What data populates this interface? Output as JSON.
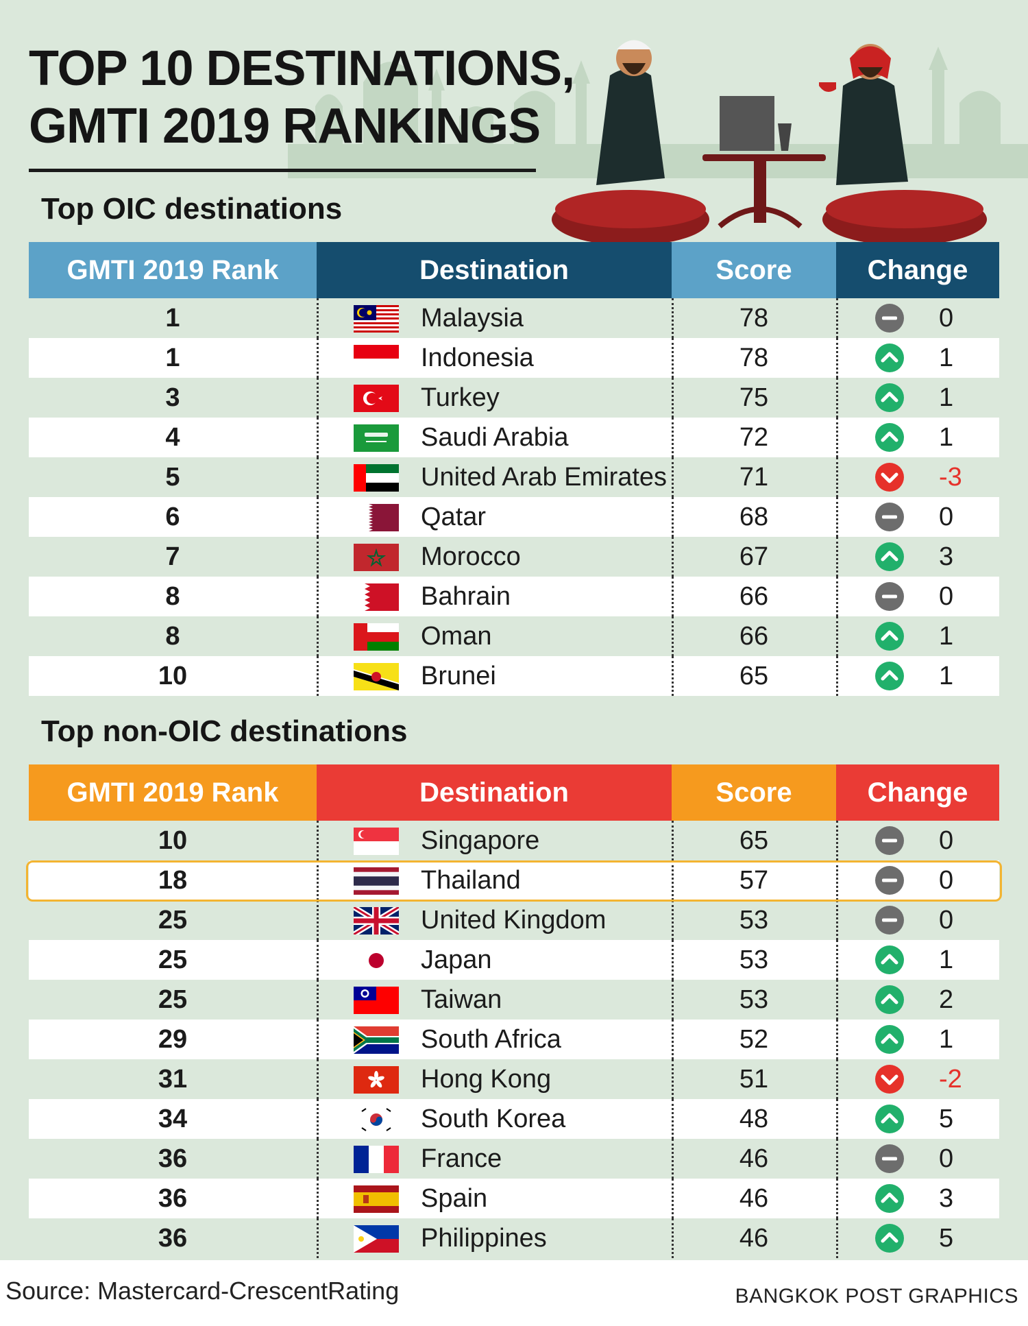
{
  "title": {
    "line1": "TOP 10 DESTINATIONS,",
    "line2": "GMTI 2019 RANKINGS"
  },
  "colors": {
    "oic_header": [
      "#5ca2c8",
      "#154d6e",
      "#5ca2c8",
      "#154d6e"
    ],
    "nonoic_header": [
      "#f69a1e",
      "#ea3b35",
      "#f69a1e",
      "#ea3b35"
    ],
    "up": "#21b06b",
    "down": "#e6312a",
    "same": "#6d6d6d",
    "highlight": "#f3b431"
  },
  "columns": {
    "rank": "GMTI 2019 Rank",
    "destination": "Destination",
    "score": "Score",
    "change": "Change"
  },
  "oic": {
    "heading": "Top OIC destinations",
    "rows": [
      {
        "rank": "1",
        "flag": "malaysia-flag",
        "destination": "Malaysia",
        "score": "78",
        "trend": "same",
        "change": "0"
      },
      {
        "rank": "1",
        "flag": "indonesia-flag",
        "destination": "Indonesia",
        "score": "78",
        "trend": "up",
        "change": "1"
      },
      {
        "rank": "3",
        "flag": "turkey-flag",
        "destination": "Turkey",
        "score": "75",
        "trend": "up",
        "change": "1"
      },
      {
        "rank": "4",
        "flag": "saudi-arabia-flag",
        "destination": "Saudi Arabia",
        "score": "72",
        "trend": "up",
        "change": "1"
      },
      {
        "rank": "5",
        "flag": "uae-flag",
        "destination": "United Arab Emirates",
        "score": "71",
        "trend": "down",
        "change": "-3"
      },
      {
        "rank": "6",
        "flag": "qatar-flag",
        "destination": "Qatar",
        "score": "68",
        "trend": "same",
        "change": "0"
      },
      {
        "rank": "7",
        "flag": "morocco-flag",
        "destination": "Morocco",
        "score": "67",
        "trend": "up",
        "change": "3"
      },
      {
        "rank": "8",
        "flag": "bahrain-flag",
        "destination": "Bahrain",
        "score": "66",
        "trend": "same",
        "change": "0"
      },
      {
        "rank": "8",
        "flag": "oman-flag",
        "destination": "Oman",
        "score": "66",
        "trend": "up",
        "change": "1"
      },
      {
        "rank": "10",
        "flag": "brunei-flag",
        "destination": "Brunei",
        "score": "65",
        "trend": "up",
        "change": "1"
      }
    ]
  },
  "nonoic": {
    "heading": "Top non-OIC destinations",
    "rows": [
      {
        "rank": "10",
        "flag": "singapore-flag",
        "destination": "Singapore",
        "score": "65",
        "trend": "same",
        "change": "0"
      },
      {
        "rank": "18",
        "flag": "thailand-flag",
        "destination": "Thailand",
        "score": "57",
        "trend": "same",
        "change": "0"
      },
      {
        "rank": "25",
        "flag": "uk-flag",
        "destination": "United Kingdom",
        "score": "53",
        "trend": "same",
        "change": "0"
      },
      {
        "rank": "25",
        "flag": "japan-flag",
        "destination": "Japan",
        "score": "53",
        "trend": "up",
        "change": "1"
      },
      {
        "rank": "25",
        "flag": "taiwan-flag",
        "destination": "Taiwan",
        "score": "53",
        "trend": "up",
        "change": "2"
      },
      {
        "rank": "29",
        "flag": "south-africa-flag",
        "destination": "South Africa",
        "score": "52",
        "trend": "up",
        "change": "1"
      },
      {
        "rank": "31",
        "flag": "hong-kong-flag",
        "destination": "Hong Kong",
        "score": "51",
        "trend": "down",
        "change": "-2"
      },
      {
        "rank": "34",
        "flag": "south-korea-flag",
        "destination": "South Korea",
        "score": "48",
        "trend": "up",
        "change": "5"
      },
      {
        "rank": "36",
        "flag": "france-flag",
        "destination": "France",
        "score": "46",
        "trend": "same",
        "change": "0"
      },
      {
        "rank": "36",
        "flag": "spain-flag",
        "destination": "Spain",
        "score": "46",
        "trend": "up",
        "change": "3"
      },
      {
        "rank": "36",
        "flag": "philippines-flag",
        "destination": "Philippines",
        "score": "46",
        "trend": "up",
        "change": "5"
      }
    ]
  },
  "footer": {
    "source": "Source: Mastercard-CrescentRating",
    "credit": "BANGKOK POST GRAPHICS"
  }
}
